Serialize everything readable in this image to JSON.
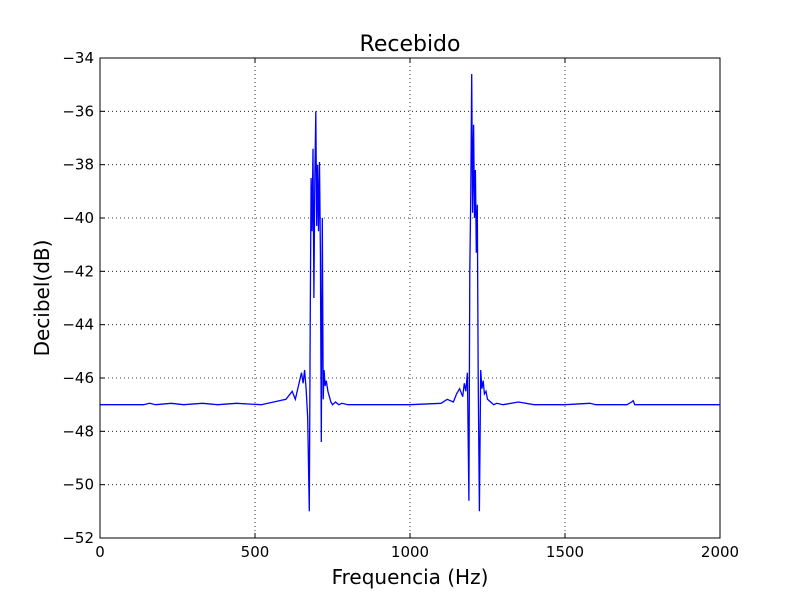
{
  "chart_data": {
    "type": "line",
    "title": "Recebido",
    "xlabel": "Frequencia (Hz)",
    "ylabel": "Decibel(dB)",
    "xlim": [
      0,
      2000
    ],
    "ylim": [
      -52,
      -34
    ],
    "x_ticks": [
      0,
      500,
      1000,
      1500,
      2000
    ],
    "y_ticks": [
      -52,
      -50,
      -48,
      -46,
      -44,
      -42,
      -40,
      -38,
      -36,
      -34
    ],
    "x_tick_labels": [
      "0",
      "500",
      "1000",
      "1500",
      "2000"
    ],
    "y_tick_labels": [
      "−52",
      "−50",
      "−48",
      "−46",
      "−44",
      "−42",
      "−40",
      "−38",
      "−36",
      "−34"
    ],
    "grid": true,
    "legend": "none",
    "series": [
      {
        "color": "#0000ff",
        "baseline": -47.0,
        "x": [
          0,
          140,
          160,
          180,
          230,
          270,
          330,
          380,
          440,
          520,
          560,
          600,
          620,
          630,
          640,
          650,
          655,
          660,
          665,
          670,
          675,
          678,
          681,
          684,
          687,
          690,
          693,
          696,
          699,
          702,
          705,
          708,
          711,
          714,
          717,
          720,
          723,
          726,
          730,
          735,
          740,
          745,
          750,
          760,
          770,
          780,
          800,
          900,
          1000,
          1100,
          1120,
          1140,
          1150,
          1160,
          1170,
          1175,
          1180,
          1185,
          1190,
          1193,
          1196,
          1199,
          1202,
          1205,
          1208,
          1211,
          1214,
          1217,
          1220,
          1224,
          1228,
          1232,
          1236,
          1240,
          1245,
          1250,
          1260,
          1270,
          1280,
          1300,
          1350,
          1400,
          1500,
          1580,
          1600,
          1700,
          1715,
          1720,
          1725,
          1800,
          1900,
          2000
        ],
        "y": [
          -47.0,
          -47.0,
          -46.95,
          -47.0,
          -46.95,
          -47.0,
          -46.95,
          -47.0,
          -46.95,
          -47.0,
          -46.9,
          -46.8,
          -46.5,
          -46.8,
          -46.3,
          -45.8,
          -46.2,
          -45.7,
          -46.4,
          -47.5,
          -51.0,
          -44.0,
          -38.5,
          -40.5,
          -37.4,
          -43.0,
          -38.6,
          -36.0,
          -40.3,
          -38.0,
          -40.5,
          -37.9,
          -41.3,
          -48.4,
          -40.0,
          -46.8,
          -45.7,
          -46.3,
          -46.1,
          -46.5,
          -46.7,
          -46.9,
          -47.0,
          -46.9,
          -47.0,
          -46.95,
          -47.0,
          -47.0,
          -47.0,
          -46.95,
          -46.8,
          -46.9,
          -46.6,
          -46.4,
          -46.7,
          -46.2,
          -46.5,
          -45.8,
          -50.6,
          -42.0,
          -39.0,
          -34.6,
          -39.8,
          -36.5,
          -40.0,
          -38.2,
          -41.3,
          -39.5,
          -46.0,
          -51.0,
          -45.7,
          -46.4,
          -46.1,
          -46.6,
          -46.5,
          -46.8,
          -46.9,
          -47.0,
          -46.95,
          -47.0,
          -46.9,
          -47.0,
          -47.0,
          -46.95,
          -47.0,
          -47.0,
          -46.9,
          -46.85,
          -47.0,
          -47.0,
          -47.0,
          -47.0
        ]
      }
    ]
  }
}
